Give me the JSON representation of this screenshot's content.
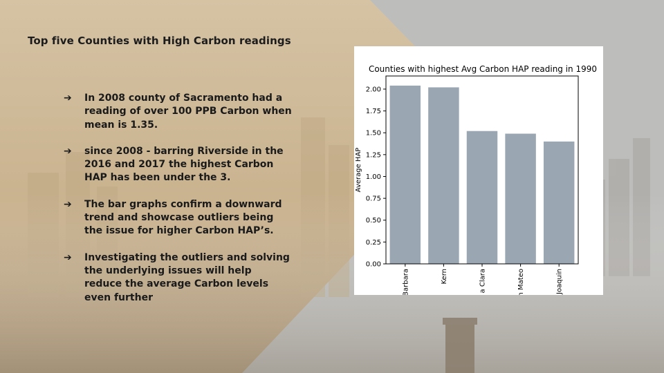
{
  "slide": {
    "title": "Top five Counties with High Carbon readings",
    "bullets": [
      "In 2008 county of Sacramento had a reading of over 100 PPB Carbon when mean is 1.35.",
      "since 2008  - barring Riverside in the 2016 and 2017 the highest Carbon HAP has been under the 3.",
      "The bar graphs confirm a downward trend and showcase outliers being the issue for higher Carbon HAP’s.",
      "Investigating the outliers and solving the underlying issues will help reduce the average Carbon levels even further"
    ],
    "bullet_icon": "arrow-right-icon",
    "colors": {
      "title_text": "#1c1c1c",
      "beige_panel": "#cdb896",
      "bar": "#9aa7b3"
    }
  },
  "chart_data": {
    "type": "bar",
    "title": "Counties with highest Avg Carbon HAP reading in 1990",
    "xlabel": "",
    "ylabel": "Average HAP",
    "categories": [
      "Santa Barbara",
      "Kern",
      "Santa Clara",
      "San Mateo",
      "San Joaquin"
    ],
    "visible_tick_labels": [
      "Barbara",
      "Kern",
      "a Clara",
      "n Mateo",
      "Joaquin"
    ],
    "values": [
      2.04,
      2.02,
      1.52,
      1.49,
      1.4
    ],
    "ylim": [
      0,
      2.15
    ],
    "yticks": [
      "0.00",
      "0.25",
      "0.50",
      "0.75",
      "1.00",
      "1.25",
      "1.50",
      "1.75",
      "2.00"
    ],
    "grid": false,
    "legend": "none"
  }
}
